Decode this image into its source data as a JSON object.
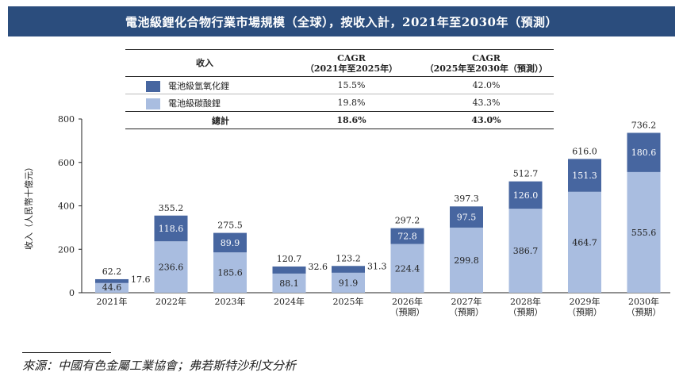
{
  "title": "電池級鋰化合物行業市場規模（全球），按收入計，2021年至2030年（預測）",
  "table": {
    "col_revenue": "收入",
    "col_cagr1_line1": "CAGR",
    "col_cagr1_line2": "（2021年至2025年）",
    "col_cagr2_line1": "CAGR",
    "col_cagr2_line2": "（2025年至2030年（預測））",
    "rows": [
      {
        "name": "電池級氫氧化鋰",
        "cagr1": "15.5%",
        "cagr2": "42.0%",
        "color": "#4766a0"
      },
      {
        "name": "電池級碳酸鋰",
        "cagr1": "19.8%",
        "cagr2": "43.3%",
        "color": "#a9bde0"
      }
    ],
    "total": {
      "name": "總計",
      "cagr1": "18.6%",
      "cagr2": "43.0%"
    }
  },
  "chart_data": {
    "type": "bar",
    "stacked": true,
    "ylabel": "收入（人民幣十億元）",
    "ylim": [
      0,
      800
    ],
    "yticks": [
      0,
      200,
      400,
      600,
      800
    ],
    "categories": [
      [
        "2021年"
      ],
      [
        "2022年"
      ],
      [
        "2023年"
      ],
      [
        "2024年"
      ],
      [
        "2025年"
      ],
      [
        "2026年",
        "（預期）"
      ],
      [
        "2027年",
        "（預期）"
      ],
      [
        "2028年",
        "（預期）"
      ],
      [
        "2029年",
        "（預期）"
      ],
      [
        "2030年",
        "（預期）"
      ]
    ],
    "series": [
      {
        "name": "電池級碳酸鋰",
        "color": "#a9bde0",
        "values": [
          44.6,
          236.6,
          185.6,
          88.1,
          91.9,
          224.4,
          299.8,
          386.7,
          464.7,
          555.6
        ]
      },
      {
        "name": "電池級氫氧化鋰",
        "color": "#4766a0",
        "values": [
          17.6,
          118.6,
          89.9,
          32.6,
          31.3,
          72.8,
          97.5,
          126.0,
          151.3,
          180.6
        ]
      }
    ],
    "totals": [
      62.2,
      355.2,
      275.5,
      120.7,
      123.2,
      297.2,
      397.3,
      512.7,
      616.0,
      736.2
    ]
  },
  "source": "來源：中國有色金屬工業協會；弗若斯特沙利文分析"
}
